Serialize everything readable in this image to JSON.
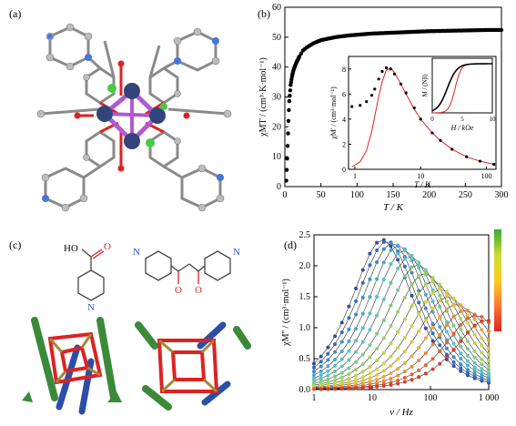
{
  "panels": {
    "a": {
      "label": "(a)"
    },
    "b": {
      "label": "(b)"
    },
    "c": {
      "label": "(c)"
    },
    "d": {
      "label": "(d)"
    }
  },
  "chart_data": [
    {
      "type": "scatter",
      "panel": "b",
      "ylabel": "χMT / (cm³·K·mol⁻¹)",
      "xlabel": "T / K",
      "xlim": [
        0,
        300
      ],
      "ylim": [
        0,
        60
      ],
      "xticks": [
        "0",
        "50",
        "100",
        "150",
        "200",
        "250",
        "300"
      ],
      "yticks": [
        "0",
        "10",
        "20",
        "30",
        "40",
        "50",
        "60"
      ],
      "x": [
        2,
        3,
        4,
        5,
        6,
        8,
        10,
        12,
        15,
        18,
        20,
        25,
        30,
        40,
        50,
        60,
        70,
        80,
        90,
        100,
        120,
        140,
        160,
        180,
        200,
        220,
        240,
        260,
        280,
        300
      ],
      "y": [
        2,
        8,
        15,
        22,
        28,
        34,
        37,
        39,
        41,
        42.5,
        43.5,
        45.5,
        46.5,
        48,
        49,
        49.5,
        50,
        50.3,
        50.6,
        50.8,
        51.2,
        51.4,
        51.6,
        51.8,
        52,
        52.1,
        52.2,
        52.3,
        52.4,
        52.4
      ],
      "inset": {
        "type": "line",
        "ylabel": "χM' / (cm³·mol⁻¹)",
        "xlabel": "T / K",
        "xscale": "log",
        "xticks": [
          "1",
          "10",
          "100"
        ],
        "yticks": [
          "0",
          "2",
          "4",
          "6",
          "8"
        ],
        "ylim": [
          0,
          9
        ],
        "series": [
          {
            "style": "points",
            "color": "#000000",
            "x": [
              0.9,
              1.2,
              1.5,
              1.8,
              2.0,
              2.3,
              2.6,
              3.0,
              3.5,
              4,
              5,
              6,
              8,
              10,
              15,
              20,
              30,
              50,
              80,
              130
            ],
            "y": [
              5.0,
              5.1,
              5.4,
              5.9,
              6.4,
              7.2,
              7.8,
              8.1,
              8.0,
              7.6,
              6.8,
              6.1,
              4.9,
              4.0,
              2.9,
              2.3,
              1.6,
              1.0,
              0.65,
              0.4
            ]
          },
          {
            "style": "line",
            "color": "#dd2222",
            "x": [
              0.9,
              1.2,
              1.5,
              1.8,
              2.0,
              2.3,
              2.6,
              3.0,
              3.5,
              4,
              5,
              6,
              8,
              10,
              15,
              20,
              30,
              50,
              80,
              130
            ],
            "y": [
              0.2,
              0.6,
              1.5,
              3.0,
              4.2,
              5.8,
              7.0,
              7.9,
              8.1,
              7.7,
              6.8,
              6.0,
              4.8,
              4.0,
              2.9,
              2.3,
              1.6,
              1.0,
              0.65,
              0.4
            ]
          }
        ],
        "subinset": {
          "ylabel": "M / (Nβ)",
          "xlabel": "H / kOe",
          "xticks": [
            "0",
            "5",
            "10"
          ],
          "series": [
            {
              "style": "points",
              "color": "#000000"
            },
            {
              "style": "line",
              "color": "#dd2222"
            }
          ]
        }
      }
    },
    {
      "type": "line",
      "panel": "d",
      "ylabel": "χM'' / (cm³·mol⁻¹)",
      "xlabel": "ν / Hz",
      "xscale": "log",
      "xlim": [
        1,
        1000
      ],
      "ylim": [
        0,
        2.5
      ],
      "xticks": [
        "1",
        "10",
        "100",
        "1 000"
      ],
      "yticks": [
        "0.0",
        "0.5",
        "1.0",
        "1.5",
        "2.0",
        "2.5"
      ],
      "colorbar": [
        "#33aa33",
        "#ccdd33",
        "#ffcc22",
        "#ff7733",
        "#dd2222"
      ],
      "series_peak_freqs": [
        15,
        18,
        22,
        28,
        35,
        45,
        60,
        80,
        110,
        150,
        200,
        280,
        400,
        600,
        900
      ],
      "series_peak_heights": [
        2.42,
        2.4,
        2.37,
        2.33,
        2.25,
        2.15,
        2.02,
        1.88,
        1.75,
        1.62,
        1.5,
        1.38,
        1.28,
        1.2,
        1.12
      ]
    }
  ],
  "ligands": {
    "left_atoms": [
      "HO",
      "O",
      "N"
    ],
    "right_atoms": [
      "N",
      "O",
      "O",
      "N"
    ]
  }
}
